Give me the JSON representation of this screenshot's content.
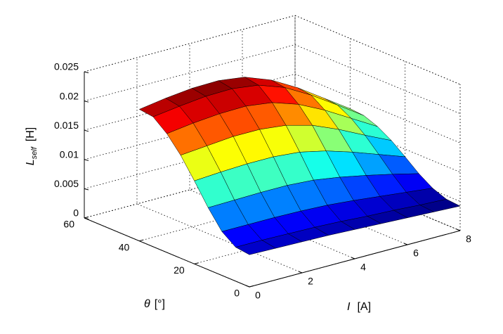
{
  "chart_data": {
    "type": "surface",
    "colormap": "jet",
    "x_label": {
      "symbol": "I",
      "unit": "[A]"
    },
    "y_label": {
      "symbol": "θ",
      "unit": "[°]"
    },
    "z_label": {
      "symbol": "L",
      "subscript": "self",
      "unit": "[H]"
    },
    "x": [
      0,
      1,
      2,
      3,
      4,
      5,
      6,
      7,
      8
    ],
    "y": [
      0,
      5,
      10,
      15,
      20,
      25,
      30,
      35,
      40
    ],
    "z": [
      [
        0.0055,
        0.0054,
        0.0053,
        0.0052,
        0.005,
        0.0048,
        0.0046,
        0.0044,
        0.0042
      ],
      [
        0.0058,
        0.0058,
        0.0057,
        0.0056,
        0.0054,
        0.0051,
        0.0049,
        0.0046,
        0.0044
      ],
      [
        0.0075,
        0.0075,
        0.0075,
        0.0074,
        0.0072,
        0.0068,
        0.0063,
        0.0058,
        0.0053
      ],
      [
        0.0106,
        0.0107,
        0.0108,
        0.0108,
        0.0105,
        0.0098,
        0.0089,
        0.0079,
        0.0068
      ],
      [
        0.0142,
        0.0145,
        0.0147,
        0.0147,
        0.0143,
        0.0133,
        0.0119,
        0.0103,
        0.0087
      ],
      [
        0.0176,
        0.018,
        0.0184,
        0.0184,
        0.0179,
        0.0167,
        0.0148,
        0.0126,
        0.0105
      ],
      [
        0.0203,
        0.0209,
        0.0213,
        0.0214,
        0.0208,
        0.0193,
        0.0171,
        0.0145,
        0.0119
      ],
      [
        0.0222,
        0.0228,
        0.0233,
        0.0234,
        0.0228,
        0.0212,
        0.0187,
        0.0158,
        0.0128
      ],
      [
        0.0225,
        0.0232,
        0.0237,
        0.0238,
        0.0232,
        0.0215,
        0.019,
        0.016,
        0.013
      ]
    ],
    "xlim": [
      0,
      8
    ],
    "xticks": [
      0,
      2,
      4,
      6,
      8
    ],
    "ylim": [
      0,
      60
    ],
    "yticks": [
      0,
      20,
      40,
      60
    ],
    "zlim": [
      0,
      0.025
    ],
    "zticks": [
      0,
      0.005,
      0.01,
      0.015,
      0.02,
      0.025
    ],
    "grid": true
  }
}
